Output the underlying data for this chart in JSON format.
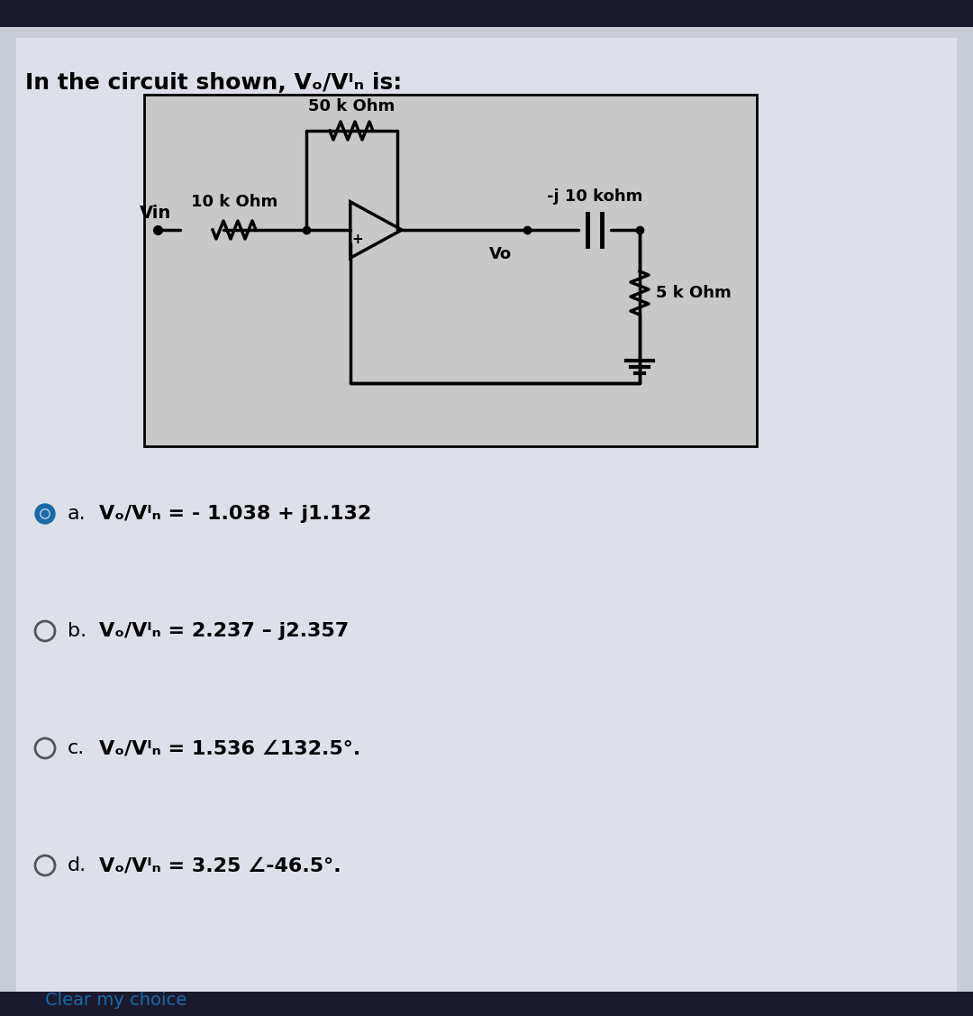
{
  "title": "In the circuit shown, Vₒ/Vᴵₙ is:",
  "bg_outer": "#8a9bb5",
  "bg_inner": "#e8e8e8",
  "circuit_bg": "#d0d0d0",
  "circuit_border": "#000000",
  "text_color": "#000000",
  "options": [
    {
      "label": "a.",
      "text": "Vₒ/Vᴵₙ = - 1.038 + j1.132",
      "selected": true
    },
    {
      "label": "b.",
      "text": "Vₒ/Vᴵₙ = 2.237 – j2.357",
      "selected": false
    },
    {
      "label": "c.",
      "text": "Vₒ/Vᴵₙ = 1.536 ∠132.5°.",
      "selected": false
    },
    {
      "label": "d.",
      "text": "Vₒ/Vᴵₙ = 3.25 ∠-46.5°.",
      "selected": false
    }
  ],
  "clear_text": "Clear my choice",
  "circuit_label_50k": "50 k Ohm",
  "circuit_label_10k": "10 k Ohm",
  "circuit_label_j10k": "-j 10 kohm",
  "circuit_label_5k": "5 k Ohm",
  "circuit_label_vin": "Vin",
  "circuit_label_vo": "Vo"
}
